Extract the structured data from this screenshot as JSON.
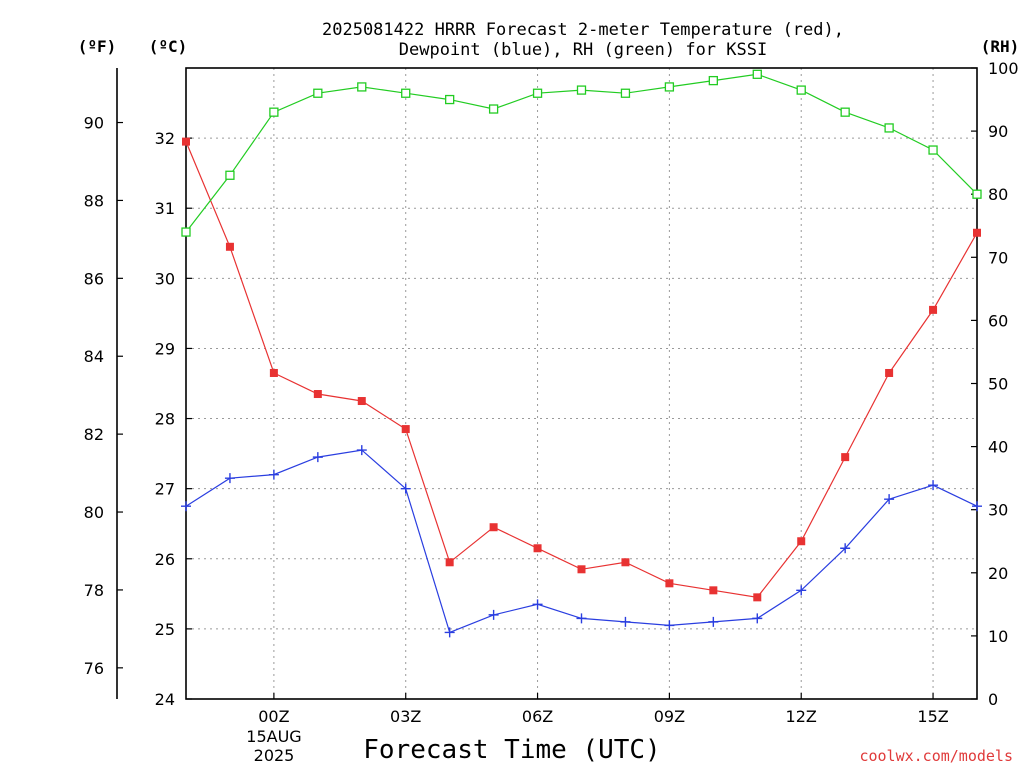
{
  "chart_data": {
    "type": "line",
    "title_line1": "2025081422 HRRR Forecast 2-meter Temperature (red),",
    "title_line2": "Dewpoint (blue), RH (green) for KSSI",
    "xlabel": "Forecast Time (UTC)",
    "y_left_outer_label": "(ºF)",
    "y_left_inner_label": "(ºC)",
    "y_right_label": "(RH)",
    "credit": "coolwx.com/models",
    "x_ticks": [
      "00Z",
      "03Z",
      "06Z",
      "09Z",
      "12Z",
      "15Z"
    ],
    "x_date_label": [
      "15AUG",
      "2025"
    ],
    "x_range_hours": [
      22,
      40
    ],
    "x_hours": [
      22,
      23,
      24,
      25,
      26,
      27,
      28,
      29,
      30,
      31,
      32,
      33,
      34,
      35,
      36,
      37,
      38,
      39,
      40
    ],
    "y_celsius_range": [
      24,
      33
    ],
    "y_celsius_ticks": [
      24,
      25,
      26,
      27,
      28,
      29,
      30,
      31,
      32
    ],
    "y_fahrenheit_ticks": [
      76,
      78,
      80,
      82,
      84,
      86,
      88,
      90
    ],
    "y_rh_range": [
      0,
      100
    ],
    "y_rh_ticks": [
      0,
      10,
      20,
      30,
      40,
      50,
      60,
      70,
      80,
      90,
      100
    ],
    "grid": true,
    "series": [
      {
        "name": "Temperature",
        "axis": "celsius",
        "color": "#e83232",
        "marker": "filled-square",
        "values": [
          31.95,
          30.45,
          28.65,
          28.35,
          28.25,
          27.85,
          25.95,
          26.45,
          26.15,
          25.85,
          25.95,
          25.65,
          25.55,
          25.45,
          26.25,
          27.45,
          28.65,
          29.55,
          30.65
        ]
      },
      {
        "name": "Dewpoint",
        "axis": "celsius",
        "color": "#2a3ee0",
        "marker": "plus",
        "values": [
          26.75,
          27.15,
          27.2,
          27.45,
          27.55,
          27.0,
          24.95,
          25.2,
          25.35,
          25.15,
          25.1,
          25.05,
          25.1,
          25.15,
          25.55,
          26.15,
          26.85,
          27.05,
          26.75
        ]
      },
      {
        "name": "RH",
        "axis": "rh",
        "color": "#22cc22",
        "marker": "open-square",
        "values": [
          74,
          83,
          93,
          96,
          97,
          96,
          95,
          93.5,
          96,
          96.5,
          96,
          97,
          98,
          99,
          96.5,
          93,
          90.5,
          87,
          80
        ]
      }
    ]
  }
}
